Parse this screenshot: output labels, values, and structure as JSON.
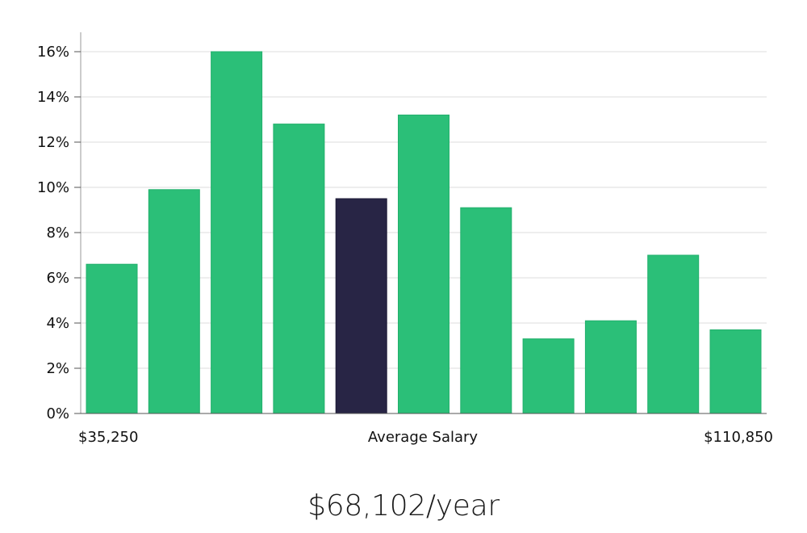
{
  "chart_data": {
    "type": "bar",
    "values": [
      6.6,
      9.9,
      16.0,
      12.8,
      9.5,
      13.2,
      9.1,
      3.3,
      4.1,
      7.0,
      3.7
    ],
    "highlight_index": 4,
    "ylim": [
      0,
      16.8
    ],
    "yticks": [
      0,
      2,
      4,
      6,
      8,
      10,
      12,
      14,
      16
    ],
    "ytick_labels": [
      "0%",
      "2%",
      "4%",
      "6%",
      "8%",
      "10%",
      "12%",
      "14%",
      "16%"
    ],
    "xlabel": "Average Salary",
    "x_min_label": "$35,250",
    "x_max_label": "$110,850",
    "grid": true,
    "colors": {
      "bar": "#2bbf78",
      "highlight": "#282545",
      "grid": "#dddddd",
      "axis": "#999999"
    }
  },
  "summary": {
    "salary": "$68,102/year"
  }
}
